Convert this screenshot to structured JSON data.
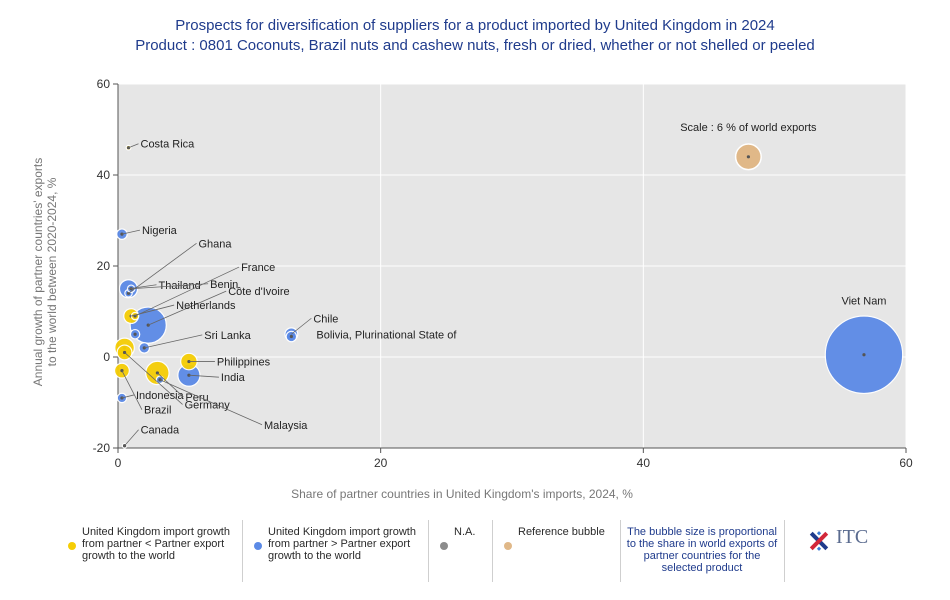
{
  "chart_data": {
    "type": "scatter",
    "title": "Prospects for diversification of suppliers for a product imported by United Kingdom in 2024",
    "subtitle": "Product : 0801 Coconuts, Brazil nuts and cashew nuts, fresh or dried, whether or not shelled or peeled",
    "xlabel": "Share of partner countries in United Kingdom's imports, 2024, %",
    "ylabel": "Annual growth of partner countries' exports to the world between 2020-2024, %",
    "xlim": [
      0,
      60
    ],
    "ylim": [
      -20,
      60
    ],
    "xticks": [
      "0",
      "20",
      "40",
      "60"
    ],
    "yticks": [
      "-20",
      "0",
      "20",
      "40",
      "60"
    ],
    "reference_label": "Scale : 6 % of world exports",
    "points": [
      {
        "name": "Viet Nam",
        "x": 56.8,
        "y": 0.5,
        "size": 5.5,
        "group": "blue"
      },
      {
        "name": "Côte d'Ivoire",
        "x": 2.3,
        "y": 7,
        "size": 1.2,
        "group": "blue"
      },
      {
        "name": "Thailand",
        "x": 0.8,
        "y": 15,
        "size": 0.3,
        "group": "blue"
      },
      {
        "name": "Nigeria",
        "x": 0.3,
        "y": 27,
        "size": 0.1,
        "group": "blue"
      },
      {
        "name": "Costa Rica",
        "x": 0.8,
        "y": 46,
        "size": 0.02,
        "group": "yellow"
      },
      {
        "name": "Chile",
        "x": 13.2,
        "y": 5,
        "size": 0.15,
        "group": "blue"
      },
      {
        "name": "Bolivia, Plurinational State of",
        "x": 13.2,
        "y": 4.5,
        "size": 0.1,
        "group": "blue"
      },
      {
        "name": "Ghana",
        "x": 0.8,
        "y": 14,
        "size": 0.05,
        "group": "blue"
      },
      {
        "name": "Benin",
        "x": 1.0,
        "y": 15,
        "size": 0.05,
        "group": "blue"
      },
      {
        "name": "France",
        "x": 1.3,
        "y": 9,
        "size": 0.05,
        "group": "yellow"
      },
      {
        "name": "Netherlands",
        "x": 1.0,
        "y": 9,
        "size": 0.2,
        "group": "yellow"
      },
      {
        "name": "Sri Lanka",
        "x": 2.0,
        "y": 2,
        "size": 0.1,
        "group": "blue"
      },
      {
        "name": "Philippines",
        "x": 5.4,
        "y": -1,
        "size": 0.25,
        "group": "yellow"
      },
      {
        "name": "India",
        "x": 5.4,
        "y": -4,
        "size": 0.45,
        "group": "blue"
      },
      {
        "name": "Indonesia",
        "x": 0.3,
        "y": -9,
        "size": 0.08,
        "group": "blue"
      },
      {
        "name": "Peru",
        "x": 3.0,
        "y": -3.5,
        "size": 0.5,
        "group": "yellow"
      },
      {
        "name": "Brazil",
        "x": 0.3,
        "y": -3,
        "size": 0.2,
        "group": "yellow"
      },
      {
        "name": "Germany",
        "x": 0.5,
        "y": 1,
        "size": 0.2,
        "group": "yellow"
      },
      {
        "name": "Malaysia",
        "x": 3.2,
        "y": -5,
        "size": 0.05,
        "group": "blue"
      },
      {
        "name": "Canada",
        "x": 0.5,
        "y": -19.5,
        "size": 0.01,
        "group": "gray"
      },
      {
        "name": "",
        "x": 1.3,
        "y": 5,
        "size": 0.08,
        "group": "blue"
      },
      {
        "name": "",
        "x": 0.5,
        "y": 2,
        "size": 0.35,
        "group": "yellow"
      }
    ],
    "reference_bubble": {
      "x": 48,
      "y": 44,
      "size": 0.6
    },
    "colors": {
      "yellow": "#f5cd05",
      "blue": "#5b8ae6",
      "gray": "#8c8c8c",
      "reference": "#e0b888",
      "grid_bg": "#e6e6e6"
    },
    "legend": [
      {
        "text": "United Kingdom import growth from partner < Partner export growth to the world",
        "color": "#f5cd05"
      },
      {
        "text": "United Kingdom import growth from partner > Partner export growth to the world",
        "color": "#5b8ae6"
      },
      {
        "text": "N.A.",
        "color": "#8c8c8c"
      },
      {
        "text": "Reference bubble",
        "color": "#e0b888"
      }
    ],
    "legend_note": "The bubble size is proportional to the share in world exports of partner countries for the selected product",
    "logo_text": "ITC"
  }
}
